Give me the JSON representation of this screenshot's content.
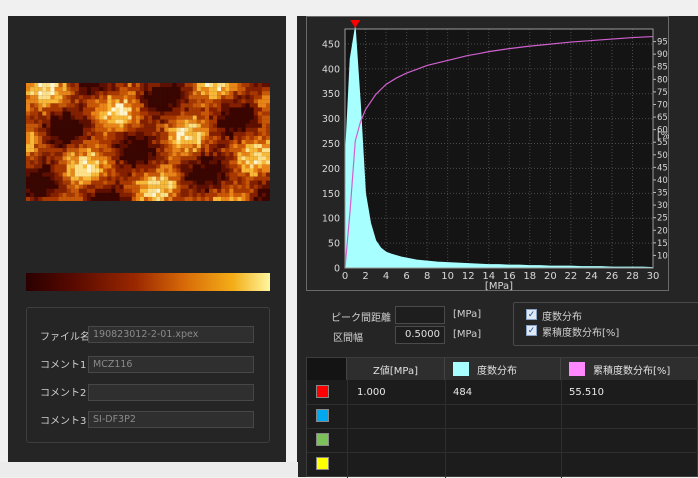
{
  "file_info": {
    "filename_label": "ファイル名",
    "filename_value": "190823012-2-01.xpex",
    "comment1_label": "コメント1",
    "comment1_value": "MCZ116",
    "comment2_label": "コメント2",
    "comment2_value": "",
    "comment3_label": "コメント3",
    "comment3_value": "SI-DF3P2"
  },
  "params": {
    "peak_distance_label": "ピーク間距離",
    "peak_distance_value": "",
    "peak_distance_unit": "[MPa]",
    "bin_width_label": "区間幅",
    "bin_width_value": "0.5000",
    "bin_width_unit": "[MPa]"
  },
  "checkboxes": {
    "frequency_label": "度数分布",
    "frequency_checked": true,
    "cumulative_label": "累積度数分布[%]",
    "cumulative_checked": true
  },
  "table": {
    "headers": [
      "Z値[MPa]",
      "度数分布",
      "累積度数分布[%]"
    ],
    "header_colors": [
      "",
      "#a8ffff",
      "#ff88ff"
    ],
    "row_colors": [
      "#ff0000",
      "#00a8f0",
      "#7cc05a",
      "#ffff00"
    ],
    "rows": [
      [
        "1.000",
        "484",
        "55.510"
      ],
      [
        "",
        "",
        ""
      ],
      [
        "",
        "",
        ""
      ],
      [
        "",
        "",
        ""
      ]
    ]
  },
  "chart_data": {
    "type": "area",
    "xlabel": "[MPa]",
    "ylabel": "",
    "y2label": "[%]",
    "xlim": [
      0,
      30
    ],
    "ylim": [
      0,
      480
    ],
    "y2lim": [
      5,
      100
    ],
    "x_ticks": [
      "0",
      "2",
      "4",
      "6",
      "8",
      "10",
      "12",
      "14",
      "16",
      "18",
      "20",
      "22",
      "24",
      "26",
      "28",
      "30"
    ],
    "y_ticks": [
      "0",
      "50",
      "100",
      "150",
      "200",
      "250",
      "300",
      "350",
      "400",
      "450"
    ],
    "y2_ticks": [
      "10",
      "15",
      "20",
      "25",
      "30",
      "35",
      "40",
      "45",
      "50",
      "55",
      "60",
      "65",
      "70",
      "75",
      "80",
      "85",
      "90",
      "95"
    ],
    "grid": true,
    "peak_marker_x": 1.0,
    "series": [
      {
        "color": "#a8ffff",
        "x": [
          0,
          0.5,
          1,
          1.5,
          2,
          2.5,
          3,
          3.5,
          4,
          4.5,
          5,
          5.5,
          6,
          7,
          8,
          9,
          10,
          11,
          12,
          13,
          14,
          15,
          16,
          17,
          18,
          19,
          20,
          21,
          22,
          23,
          24,
          25,
          26,
          27,
          28,
          29,
          30
        ],
        "values": [
          210,
          420,
          484,
          330,
          150,
          90,
          55,
          40,
          32,
          28,
          25,
          22,
          20,
          16,
          14,
          12,
          11,
          10,
          9,
          8,
          7,
          7,
          6,
          6,
          5,
          5,
          4,
          4,
          4,
          3,
          3,
          3,
          2,
          2,
          2,
          2,
          1
        ]
      },
      {
        "color": "#d060d0",
        "axis": "right",
        "x": [
          0,
          0.5,
          1,
          1.5,
          2,
          2.5,
          3,
          4,
          5,
          6,
          7,
          8,
          9,
          10,
          11,
          12,
          13,
          14,
          15,
          16,
          17,
          18,
          19,
          20,
          21,
          22,
          23,
          24,
          25,
          26,
          27,
          28,
          29,
          30
        ],
        "values": [
          5,
          28,
          55.5,
          63,
          68,
          71,
          74,
          78,
          80.5,
          82.5,
          84,
          85.5,
          86.5,
          87.5,
          88.5,
          89.5,
          90.2,
          91,
          91.6,
          92.2,
          92.7,
          93.2,
          93.6,
          94,
          94.4,
          94.8,
          95.1,
          95.4,
          95.7,
          96,
          96.3,
          96.6,
          96.8,
          97
        ]
      }
    ]
  }
}
